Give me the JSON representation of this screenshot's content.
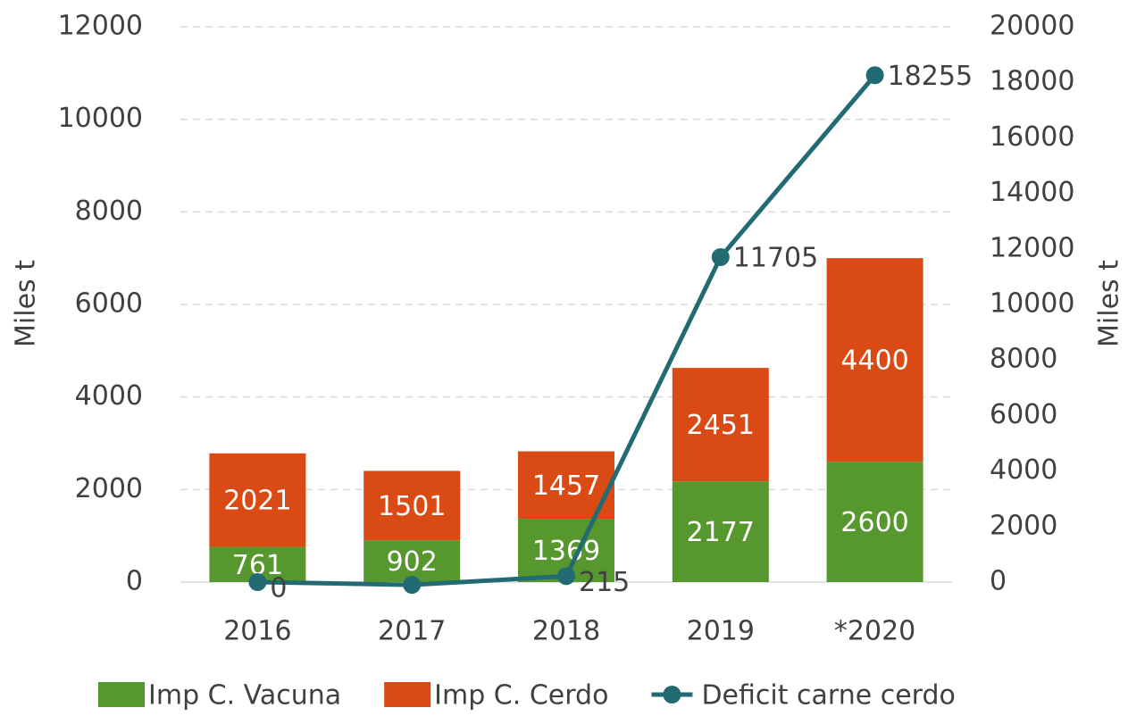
{
  "chart_data": {
    "type": "bar-line",
    "categories": [
      "2016",
      "2017",
      "2018",
      "2019",
      "*2020"
    ],
    "series": [
      {
        "name": "Imp C. Vacuna",
        "color": "#56982d",
        "type": "bar",
        "values": [
          761,
          902,
          1369,
          2177,
          2600
        ]
      },
      {
        "name": "Imp C. Cerdo",
        "color": "#d94a14",
        "type": "bar",
        "values": [
          2021,
          1501,
          1457,
          2451,
          4400
        ]
      },
      {
        "name": "Deficit carne cerdo",
        "color": "#236b73",
        "type": "line",
        "axis": "y2",
        "values": [
          0,
          -100,
          215,
          11705,
          18255
        ],
        "value_labels": [
          "0",
          null,
          "215",
          "11705",
          "18255"
        ]
      }
    ],
    "ylabel": "Miles t",
    "y2label": "Miles t",
    "ylim": [
      0,
      12000
    ],
    "yticks": [
      0,
      2000,
      4000,
      6000,
      8000,
      10000,
      12000
    ],
    "y2lim": [
      0,
      20000
    ],
    "y2ticks": [
      0,
      2000,
      4000,
      6000,
      8000,
      10000,
      12000,
      14000,
      16000,
      18000,
      20000
    ],
    "grid": true,
    "legend": "bottom"
  }
}
